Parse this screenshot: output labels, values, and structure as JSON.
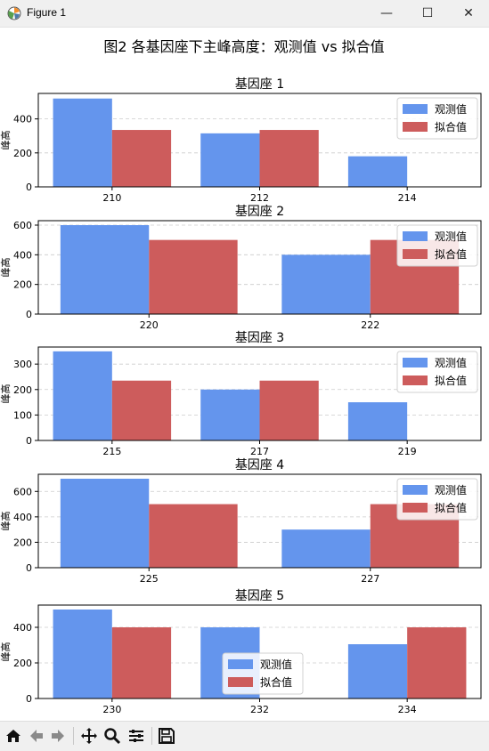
{
  "window": {
    "title": "Figure 1",
    "minimize_glyph": "—",
    "maximize_glyph": "☐",
    "close_glyph": "✕"
  },
  "figure": {
    "suptitle": "图2 各基因座下主峰高度：观测值 vs 拟合值"
  },
  "colors": {
    "observed": "#6495ED",
    "fitted": "#CD5C5C",
    "grid": "#cccccc",
    "toolbar_bg": "#f0f0f0"
  },
  "toolbar": {
    "items": [
      "home-icon",
      "back-icon",
      "forward-icon",
      "pan-icon",
      "zoom-icon",
      "configure-subplots-icon",
      "save-icon"
    ]
  },
  "chart_data": [
    {
      "type": "bar",
      "title": "基因座 1",
      "xlabel": "",
      "ylabel": "峰高",
      "categories": [
        "210",
        "212",
        "214"
      ],
      "series": [
        {
          "name": "观测值",
          "values": [
            520,
            315,
            180
          ]
        },
        {
          "name": "拟合值",
          "values": [
            335,
            335,
            null
          ]
        }
      ],
      "ylim": [
        0,
        550
      ],
      "yticks": [
        0,
        200,
        400
      ],
      "grid": true,
      "legend": "upper right"
    },
    {
      "type": "bar",
      "title": "基因座 2",
      "xlabel": "",
      "ylabel": "峰高",
      "categories": [
        "220",
        "222"
      ],
      "series": [
        {
          "name": "观测值",
          "values": [
            600,
            400
          ]
        },
        {
          "name": "拟合值",
          "values": [
            500,
            500
          ]
        }
      ],
      "ylim": [
        0,
        630
      ],
      "yticks": [
        0,
        200,
        400,
        600
      ],
      "grid": true,
      "legend": "upper right"
    },
    {
      "type": "bar",
      "title": "基因座 3",
      "xlabel": "",
      "ylabel": "峰高",
      "categories": [
        "215",
        "217",
        "219"
      ],
      "series": [
        {
          "name": "观测值",
          "values": [
            350,
            200,
            150
          ]
        },
        {
          "name": "拟合值",
          "values": [
            235,
            235,
            null
          ]
        }
      ],
      "ylim": [
        0,
        367
      ],
      "yticks": [
        0,
        100,
        200,
        300
      ],
      "grid": true,
      "legend": "upper right"
    },
    {
      "type": "bar",
      "title": "基因座 4",
      "xlabel": "",
      "ylabel": "峰高",
      "categories": [
        "225",
        "227"
      ],
      "series": [
        {
          "name": "观测值",
          "values": [
            700,
            300
          ]
        },
        {
          "name": "拟合值",
          "values": [
            500,
            500
          ]
        }
      ],
      "ylim": [
        0,
        735
      ],
      "yticks": [
        0,
        200,
        400,
        600
      ],
      "grid": true,
      "legend": "upper right"
    },
    {
      "type": "bar",
      "title": "基因座 5",
      "xlabel": "",
      "ylabel": "峰高",
      "categories": [
        "230",
        "232",
        "234"
      ],
      "series": [
        {
          "name": "观测值",
          "values": [
            500,
            400,
            305
          ]
        },
        {
          "name": "拟合值",
          "values": [
            400,
            null,
            400
          ]
        }
      ],
      "ylim": [
        0,
        525
      ],
      "yticks": [
        0,
        200,
        400
      ],
      "grid": true,
      "legend": "lower center"
    }
  ]
}
